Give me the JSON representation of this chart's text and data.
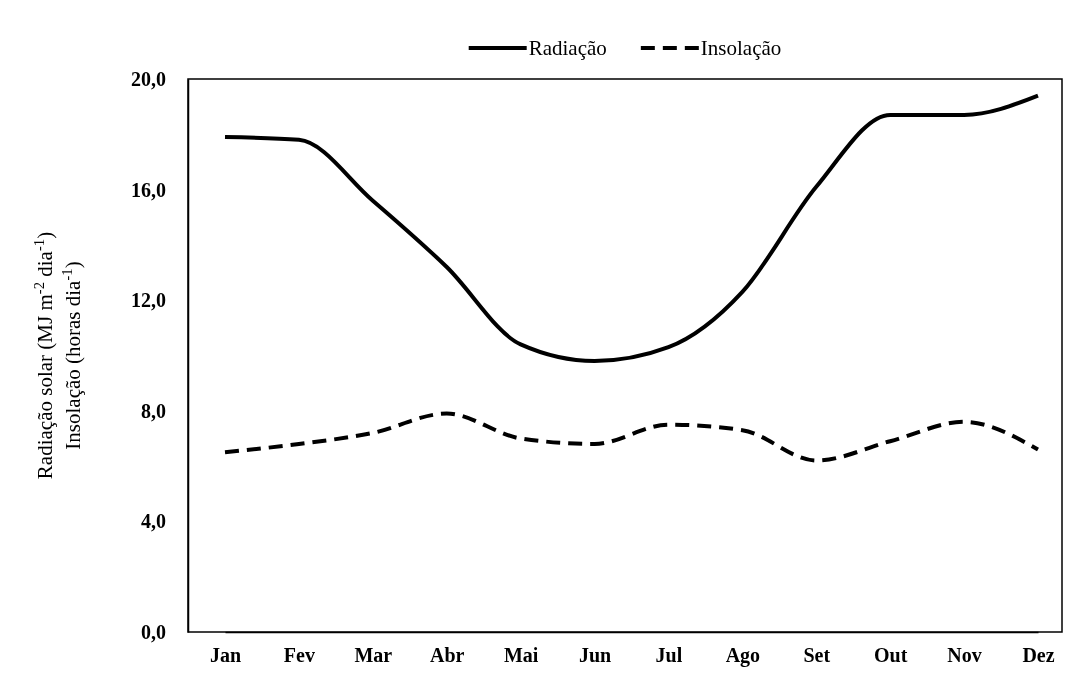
{
  "chart_data": {
    "type": "line",
    "ylabel": "Radiação solar (MJ m$^{-2}$ dia$^{-1}$)\nInsolação (horas dia$^{-1}$)",
    "categories": [
      "Jan",
      "Fev",
      "Mar",
      "Abr",
      "Mai",
      "Jun",
      "Jul",
      "Ago",
      "Set",
      "Out",
      "Nov",
      "Dez"
    ],
    "series": [
      {
        "name": "Radiação",
        "color": "#000000",
        "line_style": "solid",
        "values": [
          17.9,
          17.8,
          15.6,
          13.2,
          10.4,
          9.8,
          10.3,
          12.3,
          16.1,
          18.7,
          18.7,
          19.4
        ]
      },
      {
        "name": "Insolação",
        "color": "#000000",
        "line_style": "dashed",
        "values": [
          6.5,
          6.8,
          7.2,
          7.9,
          7.0,
          6.8,
          7.5,
          7.3,
          6.2,
          6.9,
          7.6,
          6.6
        ]
      }
    ],
    "ylim": [
      0,
      20
    ],
    "yticks": [
      {
        "value": 0,
        "label": "0,0"
      },
      {
        "value": 4,
        "label": "4,0"
      },
      {
        "value": 8,
        "label": "8,0"
      },
      {
        "value": 12,
        "label": "12,0"
      },
      {
        "value": 16,
        "label": "16,0"
      },
      {
        "value": 20,
        "label": "20,0"
      }
    ],
    "grid": false,
    "legend": "top",
    "marker": "none"
  }
}
